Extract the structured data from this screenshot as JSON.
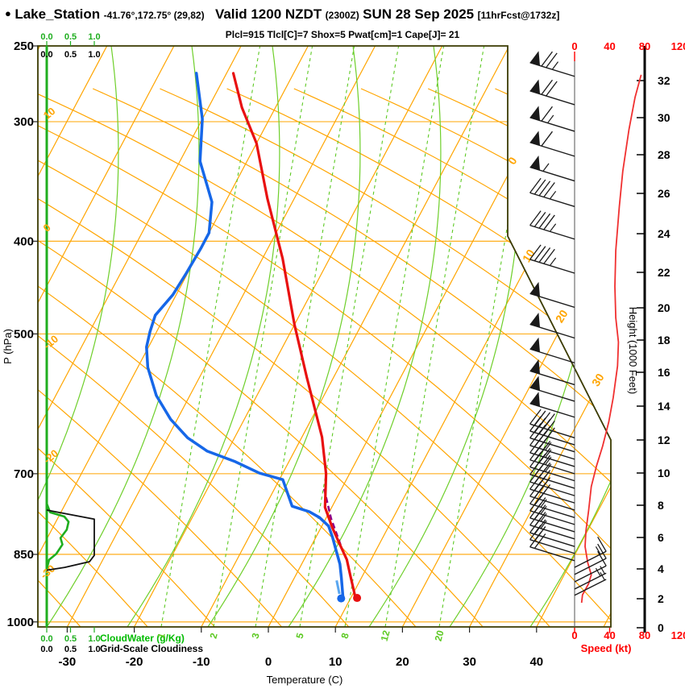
{
  "header": {
    "bullet": "●",
    "station": "Lake_Station",
    "coords": "-41.76°,172.75° (29,82)",
    "valid": "Valid 1200 NZDT",
    "zulu": "(2300Z)",
    "date": "SUN 28 Sep 2025",
    "forecast": "[11hrFcst@1732z]",
    "params": "Plcl=915 Tlcl[C]=7 Shox=5 Pwat[cm]=1 Cape[J]= 21"
  },
  "axes": {
    "pressure": {
      "title": "P (hPa)",
      "ticks": [
        250,
        300,
        400,
        500,
        700,
        850,
        1000
      ]
    },
    "temperature": {
      "title": "Temperature (C)",
      "ticks": [
        -30,
        -20,
        -10,
        0,
        10,
        20,
        30,
        40
      ]
    },
    "height": {
      "title": "Height (1000 Feet)",
      "ticks": [
        32,
        30,
        28,
        26,
        24,
        22,
        20,
        18,
        16,
        14,
        12,
        10,
        8,
        6,
        4,
        2,
        0
      ]
    },
    "speed": {
      "title": "Speed (kt)",
      "ticks": [
        0,
        40,
        80,
        120
      ]
    },
    "cloudwater": {
      "title": "CloudWater (g/Kg)",
      "scale": [
        "0.0",
        "0.5",
        "1.0"
      ]
    },
    "cloudiness": {
      "title": "Grid-Scale Cloudiness",
      "scale": [
        "0.0",
        "0.5",
        "1.0"
      ]
    }
  },
  "grid_labels": {
    "dry_adiabats_left": [
      "10",
      "0",
      "-10",
      "-20",
      "-30"
    ],
    "isotherms_right": [
      "0",
      "10",
      "20",
      "30"
    ],
    "mixing_ratio": [
      "1",
      "2",
      "3",
      "5",
      "8",
      "12",
      "20"
    ]
  },
  "colors": {
    "grid_orange": "#ffa500",
    "moist_adiabat": "#6ecf2a",
    "mixing_ratio": "#5cc922",
    "temperature": "#e81010",
    "dewpoint": "#1667e8",
    "parcel": "#8b008b",
    "wetbulb": "#5aa7f0",
    "speed_line": "#f03030",
    "cloud_water": "#1fae1f",
    "cloudiness": "#111111",
    "params_text": "#cc0066",
    "speed_axis_text": "#ff0000",
    "frame": "#3a3a00",
    "barbs": "#1a1a1a"
  },
  "chart_data": {
    "type": "skew-t-log-p-sounding",
    "pressure_range_hpa": [
      250,
      1010
    ],
    "temperature_axis_c": [
      -35,
      45
    ],
    "temperature_profile": [
      {
        "p": 267,
        "t": -49
      },
      {
        "p": 290,
        "t": -45
      },
      {
        "p": 316,
        "t": -40
      },
      {
        "p": 361,
        "t": -34
      },
      {
        "p": 417,
        "t": -27
      },
      {
        "p": 489,
        "t": -20
      },
      {
        "p": 555,
        "t": -14
      },
      {
        "p": 641,
        "t": -7
      },
      {
        "p": 700,
        "t": -3.5
      },
      {
        "p": 759,
        "t": -1
      },
      {
        "p": 797,
        "t": 1.7
      },
      {
        "p": 828,
        "t": 4
      },
      {
        "p": 861,
        "t": 6.4
      },
      {
        "p": 895,
        "t": 8.2
      },
      {
        "p": 920,
        "t": 9.5
      },
      {
        "p": 944,
        "t": 10.7
      }
    ],
    "dewpoint_profile": [
      {
        "p": 267,
        "t": -54.5
      },
      {
        "p": 298,
        "t": -50
      },
      {
        "p": 330,
        "t": -47
      },
      {
        "p": 364,
        "t": -42
      },
      {
        "p": 392,
        "t": -40
      },
      {
        "p": 407,
        "t": -40
      },
      {
        "p": 432,
        "t": -40.2
      },
      {
        "p": 455,
        "t": -40.5
      },
      {
        "p": 478,
        "t": -41.5
      },
      {
        "p": 497,
        "t": -41
      },
      {
        "p": 516,
        "t": -40.3
      },
      {
        "p": 542,
        "t": -38.5
      },
      {
        "p": 580,
        "t": -35
      },
      {
        "p": 614,
        "t": -31
      },
      {
        "p": 642,
        "t": -27
      },
      {
        "p": 663,
        "t": -23
      },
      {
        "p": 680,
        "t": -18
      },
      {
        "p": 699,
        "t": -13.5
      },
      {
        "p": 710,
        "t": -9.5
      },
      {
        "p": 757,
        "t": -6
      },
      {
        "p": 767,
        "t": -3
      },
      {
        "p": 778,
        "t": -1
      },
      {
        "p": 794,
        "t": 1
      },
      {
        "p": 816,
        "t": 2.5
      },
      {
        "p": 841,
        "t": 4
      },
      {
        "p": 870,
        "t": 5.7
      },
      {
        "p": 899,
        "t": 7
      },
      {
        "p": 943,
        "t": 8.8
      }
    ],
    "parcel_path": [
      {
        "p": 831,
        "t": 4.3
      },
      {
        "p": 780,
        "t": 0.8
      },
      {
        "p": 726,
        "t": -2.6
      }
    ],
    "wetbulb_segment": [
      {
        "p": 905,
        "t": 6.5
      },
      {
        "p": 935,
        "t": 8
      }
    ],
    "surface_temperature_dot": {
      "p": 944,
      "t": 10.7
    },
    "surface_dewpoint_dot": {
      "p": 945,
      "t": 8.6
    },
    "wind_barbs": [
      {
        "p": 269,
        "kt": 75,
        "dir": "NW"
      },
      {
        "p": 288,
        "kt": 70,
        "dir": "NW"
      },
      {
        "p": 307,
        "kt": 65,
        "dir": "NW"
      },
      {
        "p": 326,
        "kt": 60,
        "dir": "NW"
      },
      {
        "p": 346,
        "kt": 55,
        "dir": "NW"
      },
      {
        "p": 368,
        "kt": 45,
        "dir": "NW"
      },
      {
        "p": 398,
        "kt": 45,
        "dir": "NW"
      },
      {
        "p": 432,
        "kt": 45,
        "dir": "NW"
      },
      {
        "p": 469,
        "kt": 50,
        "dir": "NW"
      },
      {
        "p": 505,
        "kt": 50,
        "dir": "NW"
      },
      {
        "p": 536,
        "kt": 50,
        "dir": "NW"
      },
      {
        "p": 565,
        "kt": 50,
        "dir": "NW"
      },
      {
        "p": 588,
        "kt": 50,
        "dir": "NW"
      },
      {
        "p": 611,
        "kt": 50,
        "dir": "NW"
      },
      {
        "p": 642,
        "kt": 40,
        "dir": "NW"
      },
      {
        "p": 653,
        "kt": 40,
        "dir": "NW"
      },
      {
        "p": 664,
        "kt": 40,
        "dir": "NW"
      },
      {
        "p": 676,
        "kt": 35,
        "dir": "NW"
      },
      {
        "p": 688,
        "kt": 35,
        "dir": "NW"
      },
      {
        "p": 700,
        "kt": 35,
        "dir": "NW"
      },
      {
        "p": 712,
        "kt": 35,
        "dir": "NW"
      },
      {
        "p": 725,
        "kt": 30,
        "dir": "NW"
      },
      {
        "p": 738,
        "kt": 30,
        "dir": "NW"
      },
      {
        "p": 751,
        "kt": 30,
        "dir": "NW"
      },
      {
        "p": 764,
        "kt": 30,
        "dir": "NW"
      },
      {
        "p": 778,
        "kt": 25,
        "dir": "NW"
      },
      {
        "p": 791,
        "kt": 25,
        "dir": "NW"
      },
      {
        "p": 805,
        "kt": 25,
        "dir": "NW"
      },
      {
        "p": 819,
        "kt": 25,
        "dir": "NW"
      },
      {
        "p": 834,
        "kt": 20,
        "dir": "NW"
      },
      {
        "p": 848,
        "kt": 20,
        "dir": "NW"
      },
      {
        "p": 863,
        "kt": 20,
        "dir": "NW"
      },
      {
        "p": 877,
        "kt": 15,
        "dir": "SE"
      },
      {
        "p": 892,
        "kt": 10,
        "dir": "SE"
      },
      {
        "p": 908,
        "kt": 10,
        "dir": "SE"
      },
      {
        "p": 924,
        "kt": 8,
        "dir": "SE"
      },
      {
        "p": 938,
        "kt": 5,
        "dir": "SE"
      }
    ],
    "speed_profile_kt": [
      {
        "p": 268,
        "kt": 76
      },
      {
        "p": 283,
        "kt": 69
      },
      {
        "p": 306,
        "kt": 62
      },
      {
        "p": 338,
        "kt": 55
      },
      {
        "p": 368,
        "kt": 51
      },
      {
        "p": 409,
        "kt": 47
      },
      {
        "p": 446,
        "kt": 46
      },
      {
        "p": 481,
        "kt": 47
      },
      {
        "p": 510,
        "kt": 50
      },
      {
        "p": 540,
        "kt": 49
      },
      {
        "p": 583,
        "kt": 44
      },
      {
        "p": 618,
        "kt": 39
      },
      {
        "p": 655,
        "kt": 32
      },
      {
        "p": 687,
        "kt": 25
      },
      {
        "p": 722,
        "kt": 19
      },
      {
        "p": 765,
        "kt": 16
      },
      {
        "p": 803,
        "kt": 13
      },
      {
        "p": 834,
        "kt": 12
      },
      {
        "p": 867,
        "kt": 15
      },
      {
        "p": 893,
        "kt": 19
      },
      {
        "p": 912,
        "kt": 16
      },
      {
        "p": 937,
        "kt": 9
      },
      {
        "p": 955,
        "kt": 8
      }
    ],
    "cloud_water_g_kg": [
      {
        "p": 752,
        "v": 0
      },
      {
        "p": 768,
        "v": 0.07
      },
      {
        "p": 776,
        "v": 0.37
      },
      {
        "p": 786,
        "v": 0.46
      },
      {
        "p": 801,
        "v": 0.42
      },
      {
        "p": 817,
        "v": 0.29
      },
      {
        "p": 830,
        "v": 0.33
      },
      {
        "p": 849,
        "v": 0.2
      },
      {
        "p": 861,
        "v": 0.05
      },
      {
        "p": 880,
        "v": 0
      }
    ],
    "grid_scale_cloudiness": [
      {
        "p": 764,
        "v": 0
      },
      {
        "p": 781,
        "v": 1
      },
      {
        "p": 852,
        "v": 1
      },
      {
        "p": 865,
        "v": 0.9
      },
      {
        "p": 877,
        "v": 0.38
      },
      {
        "p": 883,
        "v": 0
      }
    ]
  }
}
